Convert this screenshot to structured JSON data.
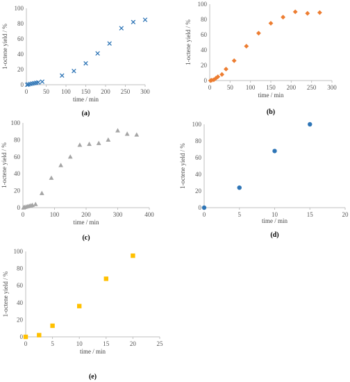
{
  "chart_data": [
    {
      "label": "(a)",
      "type": "scatter",
      "marker": "x",
      "color": "#2e75b6",
      "xlabel": "time / min",
      "ylabel": "1-octene yield / %",
      "xlim": [
        0,
        300
      ],
      "ylim": [
        0,
        100
      ],
      "xticks": [
        0,
        50,
        100,
        150,
        200,
        250,
        300
      ],
      "yticks": [
        0,
        20,
        40,
        60,
        80,
        100
      ],
      "x": [
        2,
        5,
        10,
        15,
        20,
        25,
        30,
        40,
        90,
        120,
        150,
        180,
        210,
        240,
        270,
        300
      ],
      "y": [
        0,
        0.5,
        1,
        1.5,
        2,
        2.5,
        3,
        4,
        12,
        18,
        28,
        41,
        54,
        74,
        82,
        85
      ]
    },
    {
      "label": "(b)",
      "type": "scatter",
      "marker": "diamond",
      "color": "#ed7d31",
      "xlabel": "time / min",
      "ylabel": "1-octene yield / %",
      "xlim": [
        0,
        300
      ],
      "ylim": [
        0,
        100
      ],
      "xticks": [
        0,
        50,
        100,
        150,
        200,
        250,
        300
      ],
      "yticks": [
        0,
        20,
        40,
        60,
        80,
        100
      ],
      "x": [
        2,
        5,
        10,
        15,
        20,
        30,
        40,
        60,
        90,
        120,
        150,
        180,
        210,
        240,
        270
      ],
      "y": [
        0,
        0.5,
        1,
        3,
        5,
        8,
        15,
        26,
        45,
        62,
        75,
        83,
        90,
        88,
        89
      ]
    },
    {
      "label": "(c)",
      "type": "scatter",
      "marker": "triangle",
      "color": "#a5a5a5",
      "xlabel": "time / min",
      "ylabel": "1-octene yield / %",
      "xlim": [
        0,
        400
      ],
      "ylim": [
        0,
        100
      ],
      "xticks": [
        0,
        100,
        200,
        300,
        400
      ],
      "yticks": [
        0,
        20,
        40,
        60,
        80,
        100
      ],
      "x": [
        2,
        5,
        10,
        15,
        20,
        25,
        30,
        40,
        60,
        90,
        120,
        150,
        180,
        210,
        240,
        270,
        300,
        330,
        360
      ],
      "y": [
        0,
        0.5,
        1,
        1.5,
        2,
        2.5,
        3,
        4,
        17,
        35,
        50,
        60,
        74,
        75,
        76,
        80,
        91,
        87,
        86
      ]
    },
    {
      "label": "(d)",
      "type": "scatter",
      "marker": "circle",
      "color": "#2e75b6",
      "xlabel": "time / min",
      "ylabel": "1-octene yield / %",
      "xlim": [
        0,
        20
      ],
      "ylim": [
        0,
        100
      ],
      "xticks": [
        0,
        5,
        10,
        15,
        20
      ],
      "yticks": [
        0,
        20,
        40,
        60,
        80,
        100
      ],
      "x": [
        0,
        5,
        10,
        15
      ],
      "y": [
        0,
        24,
        68,
        100
      ]
    },
    {
      "label": "(e)",
      "type": "scatter",
      "marker": "square",
      "color": "#ffc000",
      "xlabel": "time / min",
      "ylabel": "1-octene yield / %",
      "xlim": [
        0,
        25
      ],
      "ylim": [
        0,
        100
      ],
      "xticks": [
        0,
        5,
        10,
        15,
        20,
        25
      ],
      "yticks": [
        0,
        20,
        40,
        60,
        80,
        100
      ],
      "x": [
        0,
        2.5,
        5,
        10,
        15,
        20
      ],
      "y": [
        0,
        2,
        13,
        36,
        68,
        95
      ]
    }
  ]
}
